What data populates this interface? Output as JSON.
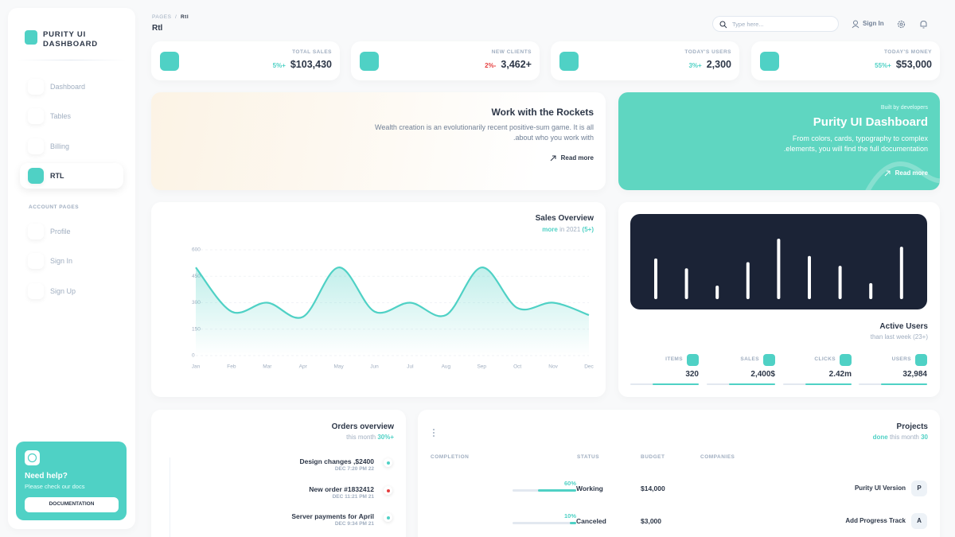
{
  "sidebar": {
    "brand": "PURITY UI DASHBOARD",
    "nav": [
      "Dashboard",
      "Tables",
      "Billing",
      "RTL"
    ],
    "section": "ACCOUNT PAGES",
    "account_nav": [
      "Profile",
      "Sign In",
      "Sign Up"
    ],
    "help": {
      "title": "Need help?",
      "text": "Please check our docs",
      "button": "DOCUMENTATION"
    }
  },
  "header": {
    "breadcrumb": [
      "PAGES",
      "/",
      "Rtl"
    ],
    "title": "Rtl",
    "search_placeholder": "Type here...",
    "sign_in": "Sign In"
  },
  "stats": [
    {
      "label": "TOTAL SALES",
      "change": "5%+",
      "value": "$103,430"
    },
    {
      "label": "NEW CLIENTS",
      "change": "2%-",
      "value": "3,462+"
    },
    {
      "label": "TODAY'S USERS",
      "change": "3%+",
      "value": "2,300"
    },
    {
      "label": "TODAY'S MONEY",
      "change": "55%+",
      "value": "$53,000"
    }
  ],
  "rockets_card": {
    "title": "Work with the Rockets",
    "text": [
      "Wealth creation is an evolutionarily recent positive-sum game. It is all",
      ".about who you work with"
    ],
    "link": "Read more"
  },
  "promo_card": {
    "kicker": "Built by developers",
    "title": "Purity UI Dashboard",
    "text": [
      "From colors, cards, typography to complex",
      ".elements, you will find the full documentation"
    ],
    "link": "Read more"
  },
  "chart_data": [
    {
      "type": "line",
      "title": "Sales Overview",
      "subtitle": {
        "highlight": "more",
        "text": "in 2021",
        "change": "(5+)"
      },
      "categories": [
        "Jan",
        "Feb",
        "Mar",
        "Apr",
        "May",
        "Jun",
        "Jul",
        "Aug",
        "Sep",
        "Oct",
        "Nov",
        "Dec"
      ],
      "values": [
        500,
        250,
        300,
        220,
        500,
        250,
        300,
        230,
        500,
        270,
        300,
        230
      ],
      "color": "#4fd1c5",
      "ylim": [
        0,
        600
      ],
      "yticks": [
        0,
        150,
        300,
        450,
        600
      ],
      "grid": true
    },
    {
      "type": "bar",
      "title": "Active Users",
      "subtitle": "than last week (23+)",
      "values": [
        330,
        250,
        110,
        300,
        490,
        350,
        270,
        130,
        425
      ],
      "color": "#ffffff",
      "ylim": [
        0,
        500
      ],
      "stats": [
        {
          "label": "ITEMS",
          "value": "320"
        },
        {
          "label": "SALES",
          "value": "2,400$"
        },
        {
          "label": "CLICKS",
          "value": "2.42m"
        },
        {
          "label": "USERS",
          "value": "32,984"
        }
      ]
    }
  ],
  "orders": {
    "title": "Orders overview",
    "subtitle": {
      "text": "this month",
      "change": "30%+"
    },
    "items": [
      {
        "title": "Design changes ,$2400",
        "date": "DEC 7:20 PM 22",
        "color": "#4fd1c5"
      },
      {
        "title": "New order #1832412",
        "date": "DEC 11:21 PM 21",
        "color": "#e53e3e"
      },
      {
        "title": "Server payments for April",
        "date": "DEC 9:34 PM 21",
        "color": "#4fd1c5"
      }
    ]
  },
  "projects": {
    "title": "Projects",
    "subtitle": {
      "highlight": "done",
      "text": "this month",
      "count": "30"
    },
    "headers": [
      "COMPLETION",
      "STATUS",
      "BUDGET",
      "COMPANIES"
    ],
    "rows": [
      {
        "completion": {
          "value": 60,
          "label": "60%"
        },
        "status": "Working",
        "budget": "$14,000",
        "company": "Purity UI Version",
        "initial": "P"
      },
      {
        "completion": {
          "value": 10,
          "label": "10%"
        },
        "status": "Canceled",
        "budget": "$3,000",
        "company": "Add Progress Track",
        "initial": "A"
      }
    ]
  }
}
